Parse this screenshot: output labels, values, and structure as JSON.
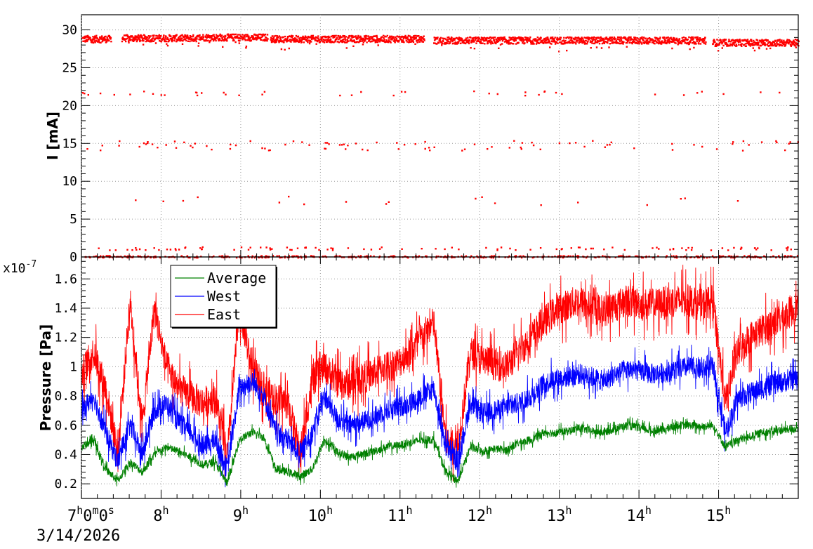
{
  "chart_data": [
    {
      "type": "scatter",
      "ylabel": "I [mA]",
      "ylim": [
        0,
        32
      ],
      "yticks": [
        "0",
        "5",
        "10",
        "15",
        "20",
        "25",
        "30"
      ],
      "xlim_hours": [
        7,
        16
      ],
      "grid": true,
      "color": "#ff0000",
      "series": [
        {
          "segments": [
            {
              "from": "7:00",
              "to": "7:22",
              "value": 28.9
            },
            {
              "from": "7:30",
              "to": "8:28",
              "value": 29.0
            },
            {
              "from": "8:28",
              "to": "9:20",
              "value": 29.1
            },
            {
              "from": "9:22",
              "to": "11:18",
              "value": 28.9
            },
            {
              "from": "11:25",
              "to": "14:50",
              "value": 28.7
            },
            {
              "from": "14:55",
              "to": "16:00",
              "value": 28.4
            }
          ],
          "scattered_levels": [
            0,
            1,
            7.5,
            14.8,
            21.7
          ]
        }
      ]
    },
    {
      "type": "line",
      "ylabel": "Pressure [Pa]",
      "yexponent": "x10-7",
      "ylim": [
        0.1,
        1.75
      ],
      "yticks": [
        "0.2",
        "0.4",
        "0.6",
        "0.8",
        "1",
        "1.2",
        "1.4",
        "1.6"
      ],
      "xlim_hours": [
        7,
        16
      ],
      "grid": true,
      "legend_position": "top-left",
      "series": [
        {
          "name": "Average",
          "color": "#008000",
          "values": [
            0.45,
            0.5,
            0.3,
            0.22,
            0.35,
            0.28,
            0.4,
            0.45,
            0.42,
            0.38,
            0.33,
            0.35,
            0.2,
            0.5,
            0.55,
            0.52,
            0.3,
            0.28,
            0.25,
            0.3,
            0.5,
            0.42,
            0.38,
            0.4,
            0.42,
            0.45,
            0.46,
            0.48,
            0.5,
            0.5,
            0.28,
            0.22,
            0.45,
            0.42,
            0.44,
            0.43,
            0.48,
            0.5,
            0.55,
            0.55,
            0.56,
            0.58,
            0.56,
            0.55,
            0.58,
            0.6,
            0.58,
            0.56,
            0.57,
            0.6,
            0.6,
            0.59,
            0.6,
            0.45,
            0.5,
            0.52,
            0.55,
            0.56,
            0.57,
            0.58
          ]
        },
        {
          "name": "West",
          "color": "#0000ff",
          "values": [
            0.7,
            0.8,
            0.55,
            0.35,
            0.6,
            0.4,
            0.7,
            0.75,
            0.62,
            0.55,
            0.45,
            0.5,
            0.3,
            0.85,
            0.9,
            0.8,
            0.55,
            0.5,
            0.4,
            0.55,
            0.8,
            0.65,
            0.6,
            0.62,
            0.65,
            0.7,
            0.72,
            0.75,
            0.8,
            0.85,
            0.45,
            0.35,
            0.75,
            0.68,
            0.7,
            0.72,
            0.75,
            0.8,
            0.88,
            0.92,
            0.93,
            0.95,
            0.93,
            0.9,
            0.95,
            0.98,
            0.97,
            0.95,
            0.96,
            0.98,
            1.0,
            0.98,
            1.0,
            0.55,
            0.78,
            0.82,
            0.85,
            0.88,
            0.9,
            0.92
          ]
        },
        {
          "name": "East",
          "color": "#ff0000",
          "values": [
            0.95,
            1.1,
            0.85,
            0.4,
            1.45,
            0.6,
            1.4,
            1.0,
            0.85,
            0.8,
            0.75,
            0.8,
            0.38,
            1.4,
            1.0,
            0.85,
            0.78,
            0.75,
            0.4,
            0.9,
            1.0,
            0.9,
            0.88,
            0.92,
            0.95,
            1.0,
            1.02,
            1.1,
            1.2,
            1.3,
            0.5,
            0.45,
            1.1,
            1.05,
            1.02,
            1.0,
            1.1,
            1.2,
            1.3,
            1.38,
            1.42,
            1.45,
            1.4,
            1.38,
            1.42,
            1.45,
            1.43,
            1.42,
            1.44,
            1.45,
            1.45,
            1.42,
            1.45,
            0.75,
            1.1,
            1.2,
            1.25,
            1.3,
            1.35,
            1.42
          ]
        }
      ]
    }
  ],
  "x_axis": {
    "ticks": [
      {
        "hour": 7,
        "parts": [
          [
            "7",
            "h"
          ],
          [
            "0",
            "m"
          ],
          [
            "0",
            "s"
          ]
        ]
      },
      {
        "hour": 8,
        "parts": [
          [
            "8",
            "h"
          ]
        ]
      },
      {
        "hour": 9,
        "parts": [
          [
            "9",
            "h"
          ]
        ]
      },
      {
        "hour": 10,
        "parts": [
          [
            "10",
            "h"
          ]
        ]
      },
      {
        "hour": 11,
        "parts": [
          [
            "11",
            "h"
          ]
        ]
      },
      {
        "hour": 12,
        "parts": [
          [
            "12",
            "h"
          ]
        ]
      },
      {
        "hour": 13,
        "parts": [
          [
            "13",
            "h"
          ]
        ]
      },
      {
        "hour": 14,
        "parts": [
          [
            "14",
            "h"
          ]
        ]
      },
      {
        "hour": 15,
        "parts": [
          [
            "15",
            "h"
          ]
        ]
      }
    ],
    "date": "3/14/2026"
  }
}
